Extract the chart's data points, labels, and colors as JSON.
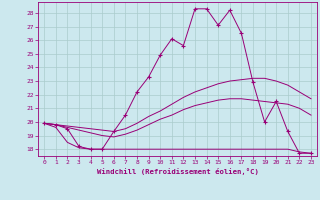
{
  "xlabel": "Windchill (Refroidissement éolien,°C)",
  "bg_color": "#cce8ee",
  "grid_color": "#aacccc",
  "line_color": "#990077",
  "xlim": [
    -0.5,
    23.5
  ],
  "ylim": [
    17.5,
    28.8
  ],
  "yticks": [
    18,
    19,
    20,
    21,
    22,
    23,
    24,
    25,
    26,
    27,
    28
  ],
  "xticks": [
    0,
    1,
    2,
    3,
    4,
    5,
    6,
    7,
    8,
    9,
    10,
    11,
    12,
    13,
    14,
    15,
    16,
    17,
    18,
    19,
    20,
    21,
    22,
    23
  ],
  "series": [
    {
      "x": [
        0,
        1,
        2,
        3,
        4,
        5,
        6,
        7,
        8,
        9,
        10,
        11,
        12,
        13,
        14,
        15,
        16,
        17,
        18,
        19,
        20,
        21,
        22,
        23
      ],
      "y": [
        19.9,
        19.8,
        19.5,
        18.2,
        18.0,
        18.0,
        19.3,
        20.5,
        22.2,
        23.3,
        24.9,
        26.1,
        25.6,
        28.3,
        28.3,
        27.1,
        28.2,
        26.5,
        22.9,
        20.0,
        21.5,
        19.3,
        17.7,
        17.7
      ],
      "marker": "+"
    },
    {
      "x": [
        0,
        1,
        2,
        3,
        4,
        5,
        6,
        7,
        8,
        9,
        10,
        11,
        12,
        13,
        14,
        15,
        16,
        17,
        18,
        19,
        20,
        21,
        22,
        23
      ],
      "y": [
        19.9,
        19.8,
        19.7,
        19.6,
        19.5,
        19.4,
        19.3,
        19.5,
        19.9,
        20.4,
        20.8,
        21.3,
        21.8,
        22.2,
        22.5,
        22.8,
        23.0,
        23.1,
        23.2,
        23.2,
        23.0,
        22.7,
        22.2,
        21.7
      ],
      "marker": null
    },
    {
      "x": [
        0,
        1,
        2,
        3,
        4,
        5,
        6,
        7,
        8,
        9,
        10,
        11,
        12,
        13,
        14,
        15,
        16,
        17,
        18,
        19,
        20,
        21,
        22,
        23
      ],
      "y": [
        19.9,
        19.8,
        19.6,
        19.4,
        19.2,
        19.0,
        18.9,
        19.1,
        19.4,
        19.8,
        20.2,
        20.5,
        20.9,
        21.2,
        21.4,
        21.6,
        21.7,
        21.7,
        21.6,
        21.5,
        21.4,
        21.3,
        21.0,
        20.5
      ],
      "marker": null
    },
    {
      "x": [
        0,
        1,
        2,
        3,
        4,
        5,
        6,
        7,
        8,
        9,
        10,
        11,
        12,
        13,
        14,
        15,
        16,
        17,
        18,
        19,
        20,
        21,
        22,
        23
      ],
      "y": [
        19.9,
        19.6,
        18.5,
        18.1,
        18.0,
        18.0,
        18.0,
        18.0,
        18.0,
        18.0,
        18.0,
        18.0,
        18.0,
        18.0,
        18.0,
        18.0,
        18.0,
        18.0,
        18.0,
        18.0,
        18.0,
        18.0,
        17.8,
        17.7
      ],
      "marker": null
    }
  ]
}
